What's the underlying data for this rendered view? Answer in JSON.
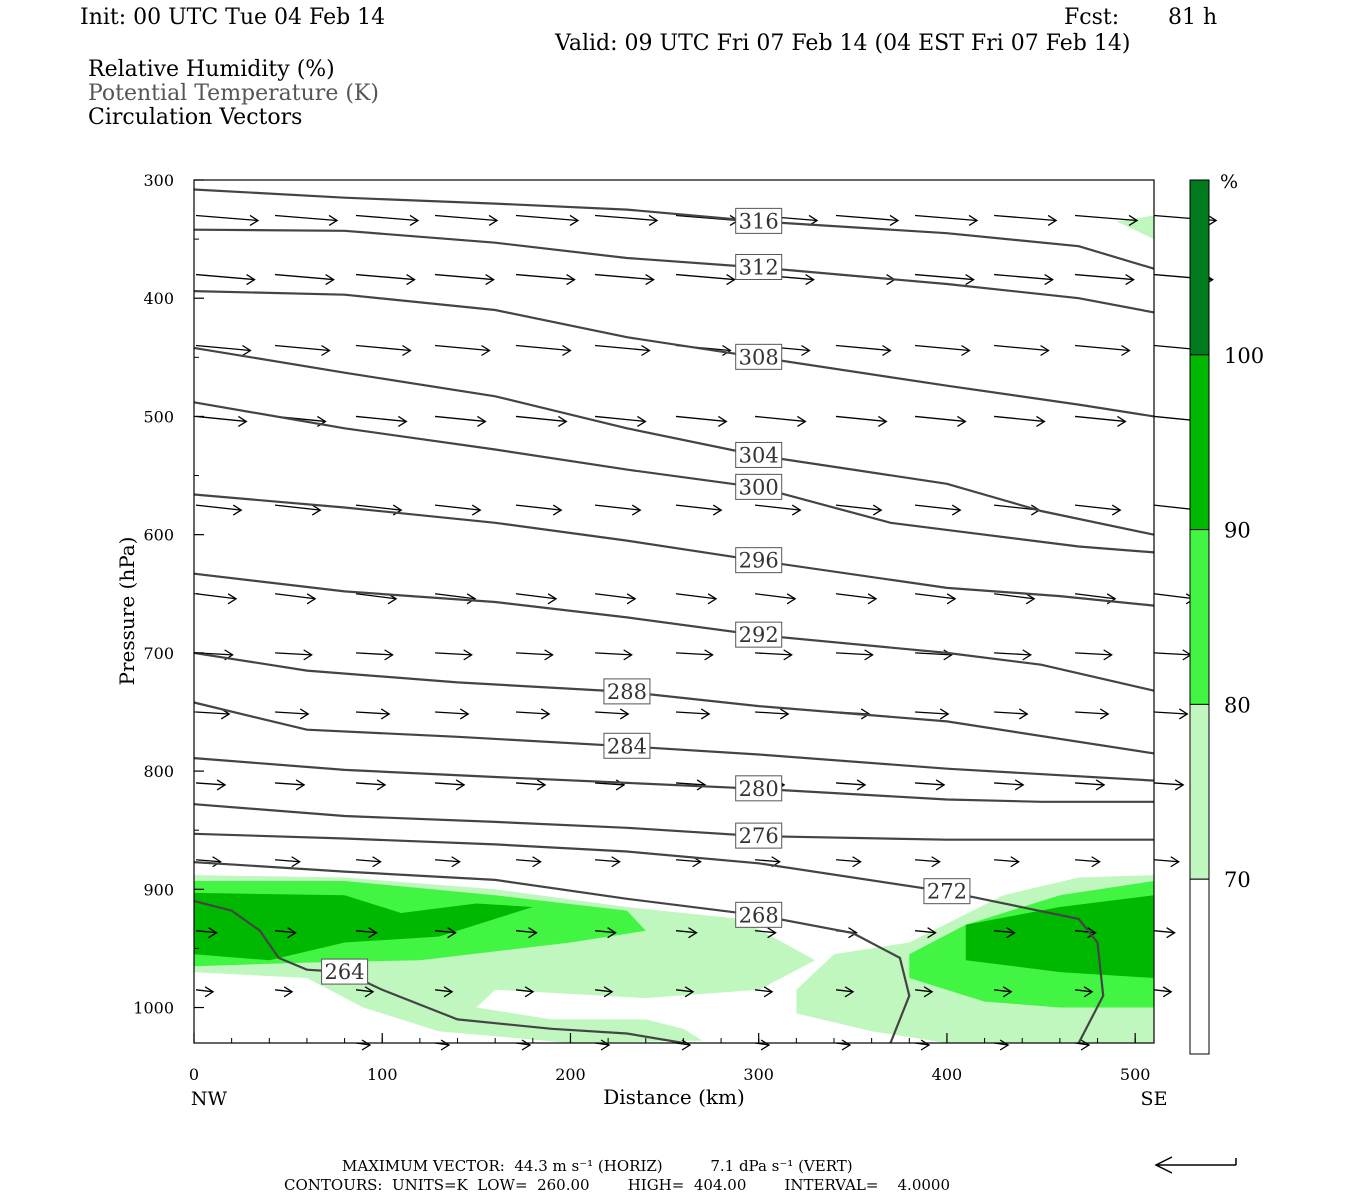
{
  "header": {
    "init": "Init: 00 UTC Tue 04 Feb 14",
    "fcst_label": "Fcst:",
    "fcst_value": "81 h",
    "valid": "Valid: 09 UTC Fri 07 Feb 14 (04 EST Fri 07 Feb 14)"
  },
  "legend_text": {
    "rh": "Relative Humidity (%)",
    "theta": "Potential Temperature (K)",
    "vectors": "Circulation Vectors"
  },
  "footer": {
    "max_vector": "MAXIMUM VECTOR:  44.3 m s⁻¹ (HORIZ)          7.1 dPa s⁻¹ (VERT)",
    "contours": "CONTOURS:  UNITS=K  LOW=  260.00        HIGH=  404.00        INTERVAL=    4.0000"
  },
  "colors": {
    "rh_70": "#bff7bf",
    "rh_80": "#42f542",
    "rh_90": "#00b800",
    "rh_100": "#007a1c",
    "contour": "#444444"
  },
  "chart_data": {
    "type": "cross-section",
    "xlabel": "Distance (km)",
    "ylabel": "Pressure (hPa)",
    "xlim": [
      0,
      510
    ],
    "ylim": [
      1030,
      300
    ],
    "x_ticks": [
      0,
      100,
      200,
      300,
      400,
      500
    ],
    "x_end_labels": [
      "NW",
      "SE"
    ],
    "y_ticks": [
      300,
      400,
      500,
      600,
      700,
      800,
      900,
      1000
    ],
    "colorbar": {
      "unit": "%",
      "levels": [
        70,
        80,
        90,
        100
      ]
    },
    "theta_contours": [
      {
        "value": 264,
        "points": [
          [
            0,
            910
          ],
          [
            20,
            918
          ],
          [
            35,
            935
          ],
          [
            45,
            958
          ],
          [
            60,
            968
          ],
          [
            80,
            970
          ],
          [
            100,
            985
          ],
          [
            140,
            1010
          ],
          [
            190,
            1018
          ],
          [
            230,
            1022
          ],
          [
            260,
            1030
          ]
        ]
      },
      {
        "value": 268,
        "points": [
          [
            0,
            877
          ],
          [
            80,
            885
          ],
          [
            160,
            892
          ],
          [
            230,
            908
          ],
          [
            300,
            922
          ],
          [
            350,
            937
          ],
          [
            375,
            958
          ],
          [
            380,
            990
          ],
          [
            370,
            1030
          ]
        ]
      },
      {
        "value": 272,
        "points": [
          [
            0,
            853
          ],
          [
            80,
            857
          ],
          [
            160,
            862
          ],
          [
            230,
            868
          ],
          [
            300,
            878
          ],
          [
            400,
            902
          ],
          [
            470,
            925
          ],
          [
            480,
            945
          ],
          [
            483,
            990
          ],
          [
            470,
            1030
          ]
        ]
      },
      {
        "value": 276,
        "points": [
          [
            0,
            828
          ],
          [
            80,
            838
          ],
          [
            160,
            843
          ],
          [
            230,
            848
          ],
          [
            300,
            855
          ],
          [
            400,
            858
          ],
          [
            470,
            858
          ],
          [
            510,
            858
          ]
        ]
      },
      {
        "value": 280,
        "points": [
          [
            0,
            789
          ],
          [
            80,
            799
          ],
          [
            160,
            805
          ],
          [
            230,
            810
          ],
          [
            300,
            815
          ],
          [
            400,
            824
          ],
          [
            450,
            826
          ],
          [
            510,
            826
          ]
        ]
      },
      {
        "value": 284,
        "points": [
          [
            0,
            742
          ],
          [
            60,
            765
          ],
          [
            140,
            771
          ],
          [
            230,
            779
          ],
          [
            300,
            786
          ],
          [
            400,
            798
          ],
          [
            510,
            808
          ]
        ]
      },
      {
        "value": 288,
        "points": [
          [
            0,
            700
          ],
          [
            60,
            715
          ],
          [
            140,
            725
          ],
          [
            230,
            733
          ],
          [
            300,
            745
          ],
          [
            400,
            758
          ],
          [
            510,
            785
          ]
        ]
      },
      {
        "value": 292,
        "points": [
          [
            0,
            633
          ],
          [
            80,
            648
          ],
          [
            160,
            657
          ],
          [
            230,
            670
          ],
          [
            300,
            685
          ],
          [
            400,
            700
          ],
          [
            450,
            710
          ],
          [
            510,
            732
          ]
        ]
      },
      {
        "value": 296,
        "points": [
          [
            0,
            566
          ],
          [
            80,
            577
          ],
          [
            160,
            590
          ],
          [
            230,
            605
          ],
          [
            300,
            622
          ],
          [
            400,
            645
          ],
          [
            460,
            652
          ],
          [
            510,
            660
          ]
        ]
      },
      {
        "value": 300,
        "points": [
          [
            0,
            488
          ],
          [
            80,
            510
          ],
          [
            160,
            528
          ],
          [
            230,
            545
          ],
          [
            300,
            560
          ],
          [
            370,
            590
          ],
          [
            420,
            600
          ],
          [
            470,
            610
          ],
          [
            510,
            615
          ]
        ]
      },
      {
        "value": 304,
        "points": [
          [
            0,
            442
          ],
          [
            80,
            463
          ],
          [
            160,
            483
          ],
          [
            230,
            510
          ],
          [
            300,
            533
          ],
          [
            350,
            545
          ],
          [
            400,
            557
          ],
          [
            450,
            580
          ],
          [
            510,
            600
          ]
        ]
      },
      {
        "value": 308,
        "points": [
          [
            0,
            394
          ],
          [
            80,
            397
          ],
          [
            160,
            410
          ],
          [
            230,
            433
          ],
          [
            300,
            450
          ],
          [
            400,
            474
          ],
          [
            470,
            490
          ],
          [
            510,
            500
          ]
        ]
      },
      {
        "value": 312,
        "points": [
          [
            0,
            342
          ],
          [
            80,
            343
          ],
          [
            160,
            353
          ],
          [
            230,
            366
          ],
          [
            300,
            374
          ],
          [
            400,
            388
          ],
          [
            470,
            400
          ],
          [
            510,
            412
          ]
        ]
      },
      {
        "value": 316,
        "points": [
          [
            0,
            308
          ],
          [
            80,
            315
          ],
          [
            160,
            320
          ],
          [
            230,
            325
          ],
          [
            300,
            335
          ],
          [
            400,
            345
          ],
          [
            470,
            356
          ],
          [
            510,
            375
          ]
        ]
      }
    ],
    "rh_regions": [
      {
        "level": 70,
        "points": [
          [
            0,
            888
          ],
          [
            80,
            890
          ],
          [
            160,
            900
          ],
          [
            230,
            915
          ],
          [
            290,
            925
          ],
          [
            330,
            960
          ],
          [
            300,
            985
          ],
          [
            240,
            992
          ],
          [
            160,
            985
          ],
          [
            150,
            1000
          ],
          [
            190,
            1010
          ],
          [
            240,
            1010
          ],
          [
            260,
            1018
          ],
          [
            270,
            1028
          ],
          [
            200,
            1030
          ],
          [
            130,
            1020
          ],
          [
            90,
            1000
          ],
          [
            60,
            975
          ],
          [
            0,
            970
          ]
        ]
      },
      {
        "level": 70,
        "points": [
          [
            320,
            985
          ],
          [
            340,
            955
          ],
          [
            380,
            945
          ],
          [
            430,
            905
          ],
          [
            470,
            890
          ],
          [
            510,
            888
          ],
          [
            510,
            1030
          ],
          [
            470,
            1030
          ],
          [
            400,
            1030
          ],
          [
            360,
            1020
          ],
          [
            320,
            1005
          ]
        ]
      },
      {
        "level": 70,
        "points": [
          [
            490,
            335
          ],
          [
            510,
            330
          ],
          [
            510,
            350
          ]
        ]
      },
      {
        "level": 80,
        "points": [
          [
            0,
            893
          ],
          [
            80,
            893
          ],
          [
            160,
            905
          ],
          [
            230,
            918
          ],
          [
            240,
            935
          ],
          [
            200,
            945
          ],
          [
            120,
            960
          ],
          [
            60,
            962
          ],
          [
            0,
            965
          ]
        ]
      },
      {
        "level": 80,
        "points": [
          [
            380,
            955
          ],
          [
            410,
            930
          ],
          [
            460,
            905
          ],
          [
            510,
            893
          ],
          [
            510,
            1000
          ],
          [
            460,
            1000
          ],
          [
            420,
            995
          ],
          [
            380,
            975
          ]
        ]
      },
      {
        "level": 90,
        "points": [
          [
            0,
            903
          ],
          [
            80,
            905
          ],
          [
            110,
            920
          ],
          [
            150,
            912
          ],
          [
            180,
            915
          ],
          [
            130,
            940
          ],
          [
            80,
            945
          ],
          [
            40,
            960
          ],
          [
            0,
            955
          ]
        ]
      },
      {
        "level": 90,
        "points": [
          [
            410,
            930
          ],
          [
            460,
            915
          ],
          [
            510,
            905
          ],
          [
            510,
            975
          ],
          [
            460,
            970
          ],
          [
            410,
            960
          ]
        ]
      }
    ],
    "vectors_grid": {
      "xs": [
        0,
        42,
        85,
        127,
        170,
        212,
        255,
        297,
        340,
        382,
        424,
        467,
        509
      ],
      "pressures": [
        330,
        380,
        440,
        500,
        575,
        650,
        700,
        750,
        810,
        875,
        935,
        985,
        1030
      ]
    }
  }
}
